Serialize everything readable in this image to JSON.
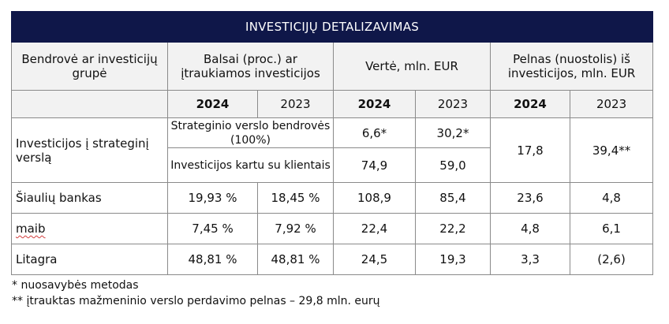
{
  "title": "INVESTICIJŲ DETALIZAVIMAS",
  "headers": {
    "company": "Bendrovė ar investicijų grupė",
    "votes": "Balsai (proc.) ar įtraukiamos investicijos",
    "value": "Vertė, mln. EUR",
    "profit": "Pelnas (nuostolis) iš investicijos, mln. EUR"
  },
  "years": {
    "current": "2024",
    "previous": "2023"
  },
  "strategic": {
    "label": "Investicijos į strateginį verslą",
    "sub1": {
      "name": "Strateginio verslo bendrovės (100%)",
      "value_2024": "6,6*",
      "value_2023": "30,2*"
    },
    "sub2": {
      "name": "Investicijos kartu su klientais",
      "value_2024": "74,9",
      "value_2023": "59,0"
    },
    "profit_2024": "17,8",
    "profit_2023": "39,4**"
  },
  "rows": [
    {
      "name": "Šiaulių bankas",
      "votes_2024": "19,93 %",
      "votes_2023": "18,45 %",
      "value_2024": "108,9",
      "value_2023": "85,4",
      "profit_2024": "23,6",
      "profit_2023": "4,8"
    },
    {
      "name": "maib",
      "votes_2024": "7,45 %",
      "votes_2023": "7,92 %",
      "value_2024": "22,4",
      "value_2023": "22,2",
      "profit_2024": "4,8",
      "profit_2023": "6,1"
    },
    {
      "name": "Litagra",
      "votes_2024": "48,81 %",
      "votes_2023": "48,81 %",
      "value_2024": "24,5",
      "value_2023": "19,3",
      "profit_2024": "3,3",
      "profit_2023": "(2,6)"
    }
  ],
  "notes": [
    "* nuosavybės metodas",
    "** įtrauktas mažmeninio verslo perdavimo pelnas – 29,8 mln. eurų"
  ]
}
